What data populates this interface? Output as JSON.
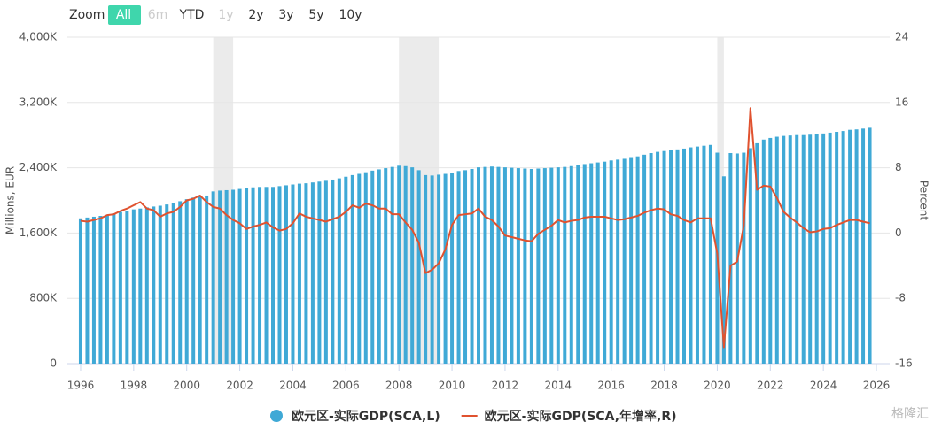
{
  "chart_data": {
    "type": "bar-line",
    "range_selector": {
      "label": "Zoom",
      "buttons": [
        "All",
        "6m",
        "YTD",
        "1y",
        "2y",
        "3y",
        "5y",
        "10y"
      ],
      "active": 0,
      "disabled": [
        1,
        3
      ]
    },
    "y_label": "Millions, EUR",
    "y2_label": "Percent",
    "xlim": [
      1995.5,
      2026.5
    ],
    "xticks": [
      1996,
      1998,
      2000,
      2002,
      2004,
      2006,
      2008,
      2010,
      2012,
      2014,
      2016,
      2018,
      2020,
      2022,
      2024,
      2026
    ],
    "ylim": [
      0,
      4000000
    ],
    "yticks": [
      {
        "value": 0,
        "label": "0"
      },
      {
        "value": 800000,
        "label": "800K"
      },
      {
        "value": 1600000,
        "label": "1,600K"
      },
      {
        "value": 2400000,
        "label": "2,400K"
      },
      {
        "value": 3200000,
        "label": "3,200K"
      },
      {
        "value": 4000000,
        "label": "4,000K"
      }
    ],
    "y2lim": [
      -16,
      24
    ],
    "y2ticks": [
      -16,
      -8,
      0,
      8,
      16,
      24
    ],
    "grid": true,
    "shaded_ranges": [
      [
        2001,
        2001.75
      ],
      [
        2008,
        2009.5
      ],
      [
        2020,
        2020.25
      ]
    ],
    "x": [
      1996,
      1996.25,
      1996.5,
      1996.75,
      1997,
      1997.25,
      1997.5,
      1997.75,
      1998,
      1998.25,
      1998.5,
      1998.75,
      1999,
      1999.25,
      1999.5,
      1999.75,
      2000,
      2000.25,
      2000.5,
      2000.75,
      2001,
      2001.25,
      2001.5,
      2001.75,
      2002,
      2002.25,
      2002.5,
      2002.75,
      2003,
      2003.25,
      2003.5,
      2003.75,
      2004,
      2004.25,
      2004.5,
      2004.75,
      2005,
      2005.25,
      2005.5,
      2005.75,
      2006,
      2006.25,
      2006.5,
      2006.75,
      2007,
      2007.25,
      2007.5,
      2007.75,
      2008,
      2008.25,
      2008.5,
      2008.75,
      2009,
      2009.25,
      2009.5,
      2009.75,
      2010,
      2010.25,
      2010.5,
      2010.75,
      2011,
      2011.25,
      2011.5,
      2011.75,
      2012,
      2012.25,
      2012.5,
      2012.75,
      2013,
      2013.25,
      2013.5,
      2013.75,
      2014,
      2014.25,
      2014.5,
      2014.75,
      2015,
      2015.25,
      2015.5,
      2015.75,
      2016,
      2016.25,
      2016.5,
      2016.75,
      2017,
      2017.25,
      2017.5,
      2017.75,
      2018,
      2018.25,
      2018.5,
      2018.75,
      2019,
      2019.25,
      2019.5,
      2019.75,
      2020,
      2020.25,
      2020.5,
      2020.75,
      2021,
      2021.25,
      2021.5,
      2021.75,
      2022,
      2022.25,
      2022.5,
      2022.75,
      2023,
      2023.25,
      2023.5,
      2023.75,
      2024,
      2024.25,
      2024.5,
      2024.75,
      2025,
      2025.25,
      2025.5,
      2025.75
    ],
    "series": [
      {
        "name": "欧元区-实际GDP(SCA,L)",
        "type": "bar",
        "color": "#3fa9d6",
        "values": [
          1780000,
          1790000,
          1800000,
          1810000,
          1820000,
          1840000,
          1860000,
          1875000,
          1890000,
          1900000,
          1915000,
          1925000,
          1935000,
          1950000,
          1970000,
          1990000,
          2015000,
          2035000,
          2050000,
          2060000,
          2110000,
          2120000,
          2125000,
          2130000,
          2140000,
          2150000,
          2160000,
          2165000,
          2165000,
          2165000,
          2175000,
          2185000,
          2195000,
          2205000,
          2210000,
          2220000,
          2230000,
          2240000,
          2255000,
          2270000,
          2290000,
          2310000,
          2325000,
          2345000,
          2365000,
          2380000,
          2395000,
          2410000,
          2425000,
          2420000,
          2405000,
          2370000,
          2310000,
          2305000,
          2315000,
          2325000,
          2335000,
          2360000,
          2370000,
          2385000,
          2405000,
          2410000,
          2415000,
          2410000,
          2405000,
          2400000,
          2395000,
          2390000,
          2385000,
          2390000,
          2395000,
          2400000,
          2405000,
          2410000,
          2420000,
          2430000,
          2445000,
          2455000,
          2465000,
          2475000,
          2490000,
          2500000,
          2510000,
          2520000,
          2540000,
          2560000,
          2580000,
          2595000,
          2605000,
          2615000,
          2625000,
          2635000,
          2650000,
          2660000,
          2670000,
          2680000,
          2585000,
          2295000,
          2580000,
          2575000,
          2585000,
          2640000,
          2700000,
          2745000,
          2765000,
          2780000,
          2790000,
          2795000,
          2800000,
          2800000,
          2805000,
          2810000,
          2820000,
          2830000,
          2840000,
          2850000,
          2865000,
          2870000,
          2880000,
          2890000
        ]
      },
      {
        "name": "欧元区-实际GDP(SCA,年增率,R)",
        "type": "line",
        "axis": "y2",
        "color": "#e0522f",
        "values": [
          1.5,
          1.4,
          1.6,
          1.8,
          2.2,
          2.3,
          2.7,
          3.0,
          3.4,
          3.8,
          3.0,
          2.8,
          2.0,
          2.4,
          2.6,
          3.2,
          4.0,
          4.2,
          4.6,
          3.8,
          3.2,
          3.0,
          2.2,
          1.6,
          1.2,
          0.5,
          0.8,
          1.0,
          1.3,
          0.7,
          0.3,
          0.5,
          1.2,
          2.4,
          2.0,
          1.8,
          1.6,
          1.4,
          1.7,
          2.0,
          2.6,
          3.4,
          3.1,
          3.6,
          3.4,
          3.0,
          3.0,
          2.3,
          2.3,
          1.3,
          0.4,
          -1.2,
          -4.9,
          -4.5,
          -3.7,
          -2.0,
          1.0,
          2.2,
          2.3,
          2.4,
          3.0,
          2.0,
          1.6,
          0.8,
          -0.3,
          -0.5,
          -0.7,
          -0.9,
          -1.0,
          -0.1,
          0.4,
          0.9,
          1.6,
          1.3,
          1.5,
          1.6,
          1.9,
          2.0,
          2.0,
          2.0,
          1.8,
          1.6,
          1.7,
          1.9,
          2.1,
          2.5,
          2.8,
          3.0,
          2.9,
          2.3,
          2.1,
          1.6,
          1.3,
          1.8,
          1.8,
          1.8,
          -2.5,
          -14.0,
          -4.0,
          -3.5,
          0.9,
          15.3,
          5.3,
          5.8,
          5.7,
          4.3,
          2.6,
          1.9,
          1.3,
          0.6,
          0.1,
          0.2,
          0.5,
          0.6,
          1.0,
          1.3,
          1.6,
          1.6,
          1.4,
          1.2
        ]
      }
    ],
    "watermark": "格隆汇"
  }
}
